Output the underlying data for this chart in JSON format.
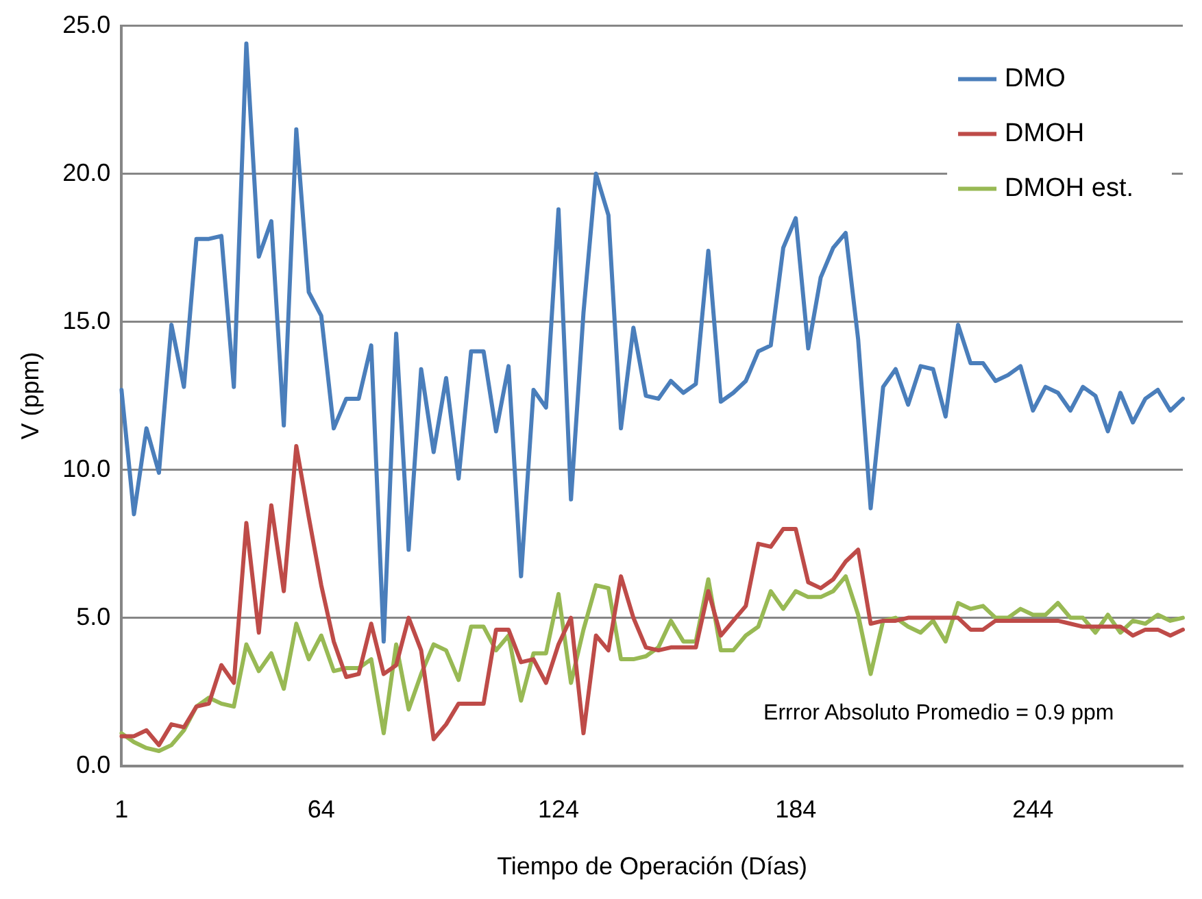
{
  "chart_data": {
    "type": "line",
    "xlabel": "Tiempo de Operación (Días)",
    "ylabel": "V (ppm)",
    "categories": [
      "1",
      null,
      null,
      null,
      null,
      null,
      null,
      null,
      null,
      null,
      null,
      null,
      null,
      null,
      null,
      null,
      "64",
      null,
      null,
      null,
      null,
      null,
      null,
      null,
      null,
      null,
      null,
      null,
      null,
      null,
      null,
      null,
      null,
      null,
      null,
      "124",
      null,
      null,
      null,
      null,
      null,
      null,
      null,
      null,
      null,
      null,
      null,
      null,
      null,
      null,
      null,
      null,
      null,
      null,
      "184",
      null,
      null,
      null,
      null,
      null,
      null,
      null,
      null,
      null,
      null,
      null,
      null,
      null,
      null,
      null,
      null,
      null,
      null,
      "244",
      null,
      null,
      null,
      null,
      null,
      null,
      null,
      null,
      null,
      null,
      null,
      null
    ],
    "series": [
      {
        "name": "DMO",
        "color": "#4a7ebb",
        "values": [
          12.7,
          8.5,
          11.4,
          9.9,
          14.9,
          12.8,
          17.8,
          17.8,
          17.9,
          12.8,
          24.4,
          17.2,
          18.4,
          11.5,
          21.5,
          16.0,
          15.2,
          11.4,
          12.4,
          12.4,
          14.2,
          4.2,
          14.6,
          7.3,
          13.4,
          10.6,
          13.1,
          9.7,
          14.0,
          14.0,
          11.3,
          13.5,
          6.4,
          12.7,
          12.1,
          18.8,
          9.0,
          15.3,
          20.0,
          18.6,
          11.4,
          14.8,
          12.5,
          12.4,
          13.0,
          12.6,
          12.9,
          17.4,
          12.3,
          12.6,
          13.0,
          14.0,
          14.2,
          17.5,
          18.5,
          14.1,
          16.5,
          17.5,
          18.0,
          14.4,
          8.7,
          12.8,
          13.4,
          12.2,
          13.5,
          13.4,
          11.8,
          14.9,
          13.6,
          13.6,
          13.0,
          13.2,
          13.5,
          12.0,
          12.8,
          12.6,
          12.0,
          12.8,
          12.5,
          11.3,
          12.6,
          11.6,
          12.4,
          12.7,
          12.0,
          12.4
        ]
      },
      {
        "name": "DMOH",
        "color": "#be4b48",
        "values": [
          1.0,
          1.0,
          1.2,
          0.7,
          1.4,
          1.3,
          2.0,
          2.1,
          3.4,
          2.8,
          8.2,
          4.5,
          8.8,
          5.9,
          10.8,
          8.4,
          6.1,
          4.2,
          3.0,
          3.1,
          4.8,
          3.1,
          3.4,
          5.0,
          3.9,
          0.9,
          1.4,
          2.1,
          2.1,
          2.1,
          4.6,
          4.6,
          3.5,
          3.6,
          2.8,
          4.1,
          5.0,
          1.1,
          4.4,
          3.9,
          6.4,
          5.0,
          4.0,
          3.9,
          4.0,
          4.0,
          4.0,
          5.9,
          4.4,
          4.9,
          5.4,
          7.5,
          7.4,
          8.0,
          8.0,
          6.2,
          6.0,
          6.3,
          6.9,
          7.3,
          4.8,
          4.9,
          4.9,
          5.0,
          5.0,
          5.0,
          5.0,
          5.0,
          4.6,
          4.6,
          4.9,
          4.9,
          4.9,
          4.9,
          4.9,
          4.9,
          4.8,
          4.7,
          4.7,
          4.7,
          4.7,
          4.4,
          4.6,
          4.6,
          4.4,
          4.6
        ]
      },
      {
        "name": "DMOH est.",
        "color": "#98b954",
        "values": [
          1.1,
          0.8,
          0.6,
          0.5,
          0.7,
          1.2,
          2.0,
          2.3,
          2.1,
          2.0,
          4.1,
          3.2,
          3.8,
          2.6,
          4.8,
          3.6,
          4.4,
          3.2,
          3.3,
          3.3,
          3.6,
          1.1,
          4.1,
          1.9,
          3.1,
          4.1,
          3.9,
          2.9,
          4.7,
          4.7,
          3.9,
          4.4,
          2.2,
          3.8,
          3.8,
          5.8,
          2.8,
          4.6,
          6.1,
          6.0,
          3.6,
          3.6,
          3.7,
          4.0,
          4.9,
          4.2,
          4.2,
          6.3,
          3.9,
          3.9,
          4.4,
          4.7,
          5.9,
          5.3,
          5.9,
          5.7,
          5.7,
          5.9,
          6.4,
          5.1,
          3.1,
          4.9,
          5.0,
          4.7,
          4.5,
          4.9,
          4.2,
          5.5,
          5.3,
          5.4,
          5.0,
          5.0,
          5.3,
          5.1,
          5.1,
          5.5,
          5.0,
          5.0,
          4.5,
          5.1,
          4.5,
          4.9,
          4.8,
          5.1,
          4.9,
          5.0
        ]
      }
    ],
    "ylim": [
      0,
      25
    ],
    "yticks": [
      {
        "value": 0,
        "label": "0.0"
      },
      {
        "value": 5,
        "label": "5.0"
      },
      {
        "value": 10,
        "label": "10.0"
      },
      {
        "value": 15,
        "label": "15.0"
      },
      {
        "value": 20,
        "label": "20.0"
      },
      {
        "value": 25,
        "label": "25.0"
      }
    ],
    "grid": "y",
    "legend": "top right",
    "marker": "none",
    "line_style": "solid",
    "annotations": [
      "Errror Absoluto Promedio = 0.9 ppm"
    ]
  }
}
